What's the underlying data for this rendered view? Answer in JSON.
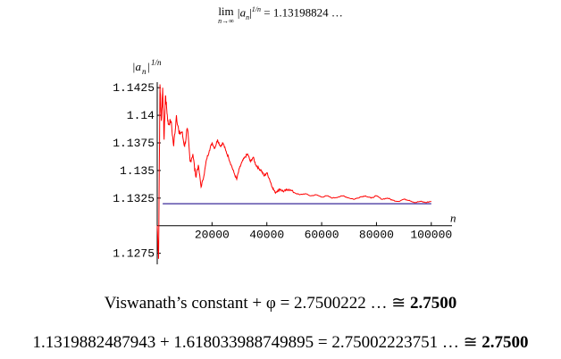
{
  "header": {
    "lim_word": "lim",
    "lim_sub": "n→∞",
    "abs_expr": "|a",
    "abs_sub": "n",
    "abs_close": "|",
    "exponent": "1/n",
    "rest": " = 1.13198824 …"
  },
  "chart_data": {
    "type": "line",
    "ylabel_main": "|a",
    "ylabel_sub": "n",
    "ylabel_close": "|",
    "ylabel_exp": "1/n",
    "xlabel": "n",
    "xlim": [
      0,
      103000
    ],
    "ylim": [
      1.1265,
      1.143
    ],
    "x_axis_at_y": 1.13,
    "x_ticks": [
      20000,
      40000,
      60000,
      80000,
      100000
    ],
    "x_tick_labels": [
      "20000",
      "40000",
      "60000",
      "80000",
      "100000"
    ],
    "y_ticks": [
      1.1425,
      1.14,
      1.1375,
      1.135,
      1.1325,
      1.1275
    ],
    "y_tick_labels": [
      "1.1425",
      "1.14",
      "1.1375",
      "1.135",
      "1.1325",
      "1.1275"
    ],
    "grid": false,
    "series": [
      {
        "kind": "sequence",
        "color": "#ff0000",
        "x": [
          0,
          500,
          1000,
          1500,
          2000,
          2500,
          3000,
          3500,
          4000,
          5000,
          6000,
          7000,
          8000,
          9000,
          10000,
          11000,
          12000,
          13000,
          14000,
          15000,
          16000,
          17000,
          18000,
          19000,
          20000,
          21000,
          22000,
          23000,
          24000,
          25000,
          26000,
          27000,
          28000,
          29000,
          30000,
          31000,
          32000,
          33000,
          34000,
          35000,
          36000,
          37000,
          38000,
          39000,
          40000,
          41000,
          42000,
          43000,
          44000,
          45000,
          46000,
          47000,
          48000,
          50000,
          52000,
          54000,
          56000,
          58000,
          60000,
          62000,
          64000,
          66000,
          68000,
          70000,
          72000,
          74000,
          76000,
          78000,
          80000,
          82000,
          84000,
          86000,
          88000,
          90000,
          92000,
          94000,
          96000,
          98000,
          100000
        ],
        "y": [
          1.13,
          1.127,
          1.1428,
          1.1395,
          1.1425,
          1.1378,
          1.1418,
          1.1405,
          1.1392,
          1.1395,
          1.1372,
          1.14,
          1.1383,
          1.1385,
          1.1372,
          1.1388,
          1.1358,
          1.1365,
          1.1345,
          1.1355,
          1.1335,
          1.1345,
          1.136,
          1.1368,
          1.1375,
          1.137,
          1.1378,
          1.1372,
          1.1375,
          1.1368,
          1.1362,
          1.1355,
          1.1348,
          1.1342,
          1.1352,
          1.1358,
          1.1362,
          1.1365,
          1.1358,
          1.1362,
          1.1355,
          1.1352,
          1.135,
          1.1345,
          1.1348,
          1.1342,
          1.1335,
          1.133,
          1.1332,
          1.1333,
          1.1331,
          1.1332,
          1.1333,
          1.133,
          1.1328,
          1.1329,
          1.1327,
          1.1328,
          1.1326,
          1.1327,
          1.1325,
          1.1326,
          1.1327,
          1.1325,
          1.1324,
          1.1326,
          1.1327,
          1.1325,
          1.1327,
          1.1324,
          1.1325,
          1.1323,
          1.1322,
          1.1324,
          1.1323,
          1.1321,
          1.1322,
          1.1321,
          1.1322
        ]
      },
      {
        "kind": "limit",
        "color": "#3a2a9a",
        "x": [
          2000,
          100000
        ],
        "y": [
          1.13198824,
          1.13198824
        ]
      }
    ]
  },
  "eq1": {
    "lhs": "Viswanath’s constant + φ = 2.7500222 … ≅ ",
    "bold": "2.7500"
  },
  "eq2": {
    "lhs": "1.1319882487943 + 1.618033988749895 = 2.75002223751 … ≅ ",
    "bold": "2.7500"
  }
}
